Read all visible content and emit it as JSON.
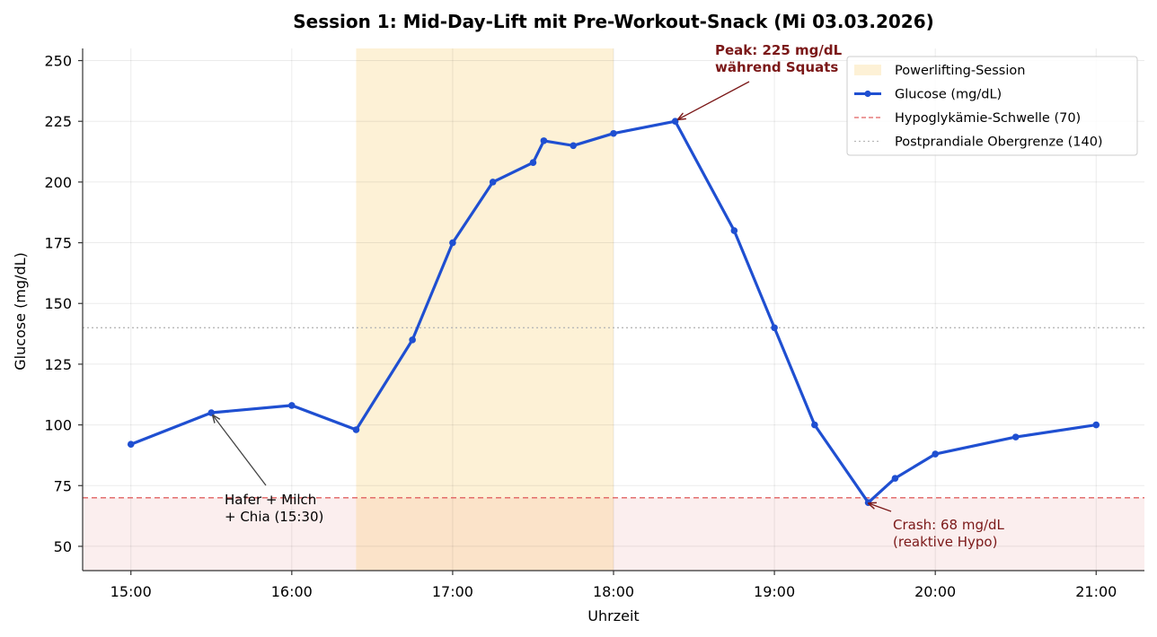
{
  "chart_data": {
    "type": "line",
    "title": "Session 1: Mid-Day-Lift mit Pre-Workout-Snack (Mi 03.03.2026)",
    "xlabel": "Uhrzeit",
    "ylabel": "Glucose (mg/dL)",
    "xlim": [
      "14:42",
      "21:18"
    ],
    "ylim": [
      40,
      255
    ],
    "x_ticks": [
      "15:00",
      "16:00",
      "17:00",
      "18:00",
      "19:00",
      "20:00",
      "21:00"
    ],
    "y_ticks": [
      50,
      75,
      100,
      125,
      150,
      175,
      200,
      225,
      250
    ],
    "grid": true,
    "legend_position": "top-right",
    "series": [
      {
        "name": "Glucose (mg/dL)",
        "color": "#1f4fd1",
        "x": [
          "15:00",
          "15:30",
          "16:00",
          "16:24",
          "16:45",
          "17:00",
          "17:15",
          "17:30",
          "17:34",
          "17:45",
          "18:00",
          "18:23",
          "18:45",
          "19:00",
          "19:15",
          "19:35",
          "19:45",
          "20:00",
          "20:30",
          "21:00"
        ],
        "y": [
          92,
          105,
          108,
          98,
          135,
          175,
          200,
          208,
          217,
          215,
          220,
          225,
          180,
          140,
          100,
          68,
          78,
          88,
          95,
          100
        ]
      }
    ],
    "session_band": {
      "label": "Powerlifting-Session",
      "start": "16:24",
      "end": "18:00",
      "color": "#fdf1d6"
    },
    "hypo_zone": {
      "from": 40,
      "to": 70,
      "color": "#fbeeee"
    },
    "reference_lines": [
      {
        "label": "Hypoglykämie-Schwelle (70)",
        "value": 70,
        "color": "#e06060",
        "style": "dashed"
      },
      {
        "label": "Postprandiale Obergrenze (140)",
        "value": 140,
        "color": "#b8b8b8",
        "style": "dotted"
      }
    ],
    "annotations": [
      {
        "lines": [
          "Hafer + Milch",
          "+ Chia (15:30)"
        ],
        "point_x": "15:30",
        "point_y": 105,
        "color": "#000000",
        "bold": false
      },
      {
        "lines": [
          "Peak: 225 mg/dL",
          "während Squats"
        ],
        "point_x": "18:23",
        "point_y": 225,
        "color": "#7b1818",
        "bold": true
      },
      {
        "lines": [
          "Crash: 68 mg/dL",
          "(reaktive Hypo)"
        ],
        "point_x": "19:35",
        "point_y": 68,
        "color": "#7b1818",
        "bold": false
      }
    ]
  }
}
